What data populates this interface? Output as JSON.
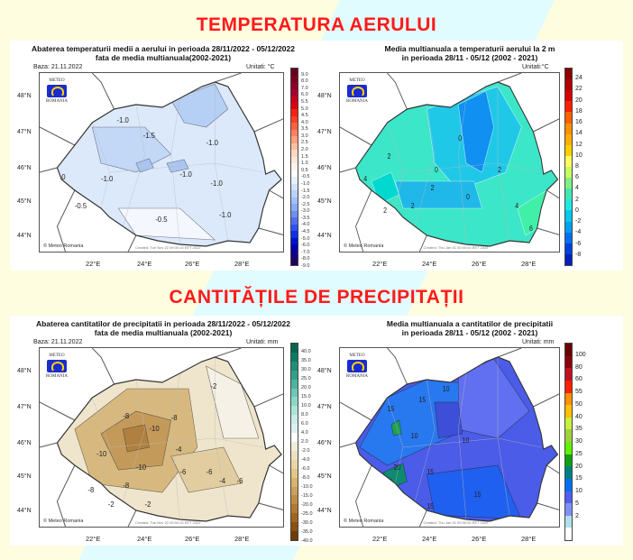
{
  "headings": {
    "temperature": "TEMPERATURA AERULUI",
    "precipitation": "CANTITĂȚILE DE PRECIPITAȚII"
  },
  "common": {
    "logo_top": "METEO",
    "logo_bottom": "ROMANIA",
    "copyright": "© Meteo Romania",
    "lat": [
      "48°N",
      "47°N",
      "46°N",
      "45°N",
      "44°N"
    ],
    "lon": [
      "22°E",
      "24°E",
      "26°E",
      "28°E"
    ]
  },
  "maps": [
    {
      "title1": "Abaterea temperaturii medii a aerului in perioada 28/11/2022 - 05/12/2022",
      "title2": "fata de media multianuala(2002-2021)",
      "base": "Baza: 21.11.2022",
      "unit": "Unitati: °C",
      "created": "Created: Tue Nov 22 09:00:15 EET 2022",
      "colorbar": {
        "labels": [
          "9.0",
          "8.0",
          "7.0",
          "6.0",
          "5.5",
          "5.0",
          "4.5",
          "4.0",
          "3.5",
          "3.0",
          "2.5",
          "2.0",
          "1.5",
          "1.0",
          "0.5",
          "-0.5",
          "-1.0",
          "-1.5",
          "-2.0",
          "-2.5",
          "-3.0",
          "-3.5",
          "-4.0",
          "-4.5",
          "-5.0",
          "-6.0",
          "-7.0",
          "-8.0",
          "-9.0"
        ],
        "colors": [
          "#67001f",
          "#7a0022",
          "#8e0028",
          "#a8002e",
          "#c4001f",
          "#e00010",
          "#f82010",
          "#ff4020",
          "#ff6040",
          "#ff8060",
          "#ffa080",
          "#ffc0a0",
          "#ffd8c0",
          "#ffe8d8",
          "#fff4ec",
          "#ffffff",
          "#e6f0ff",
          "#d0e2ff",
          "#b8d2ff",
          "#a0c0ff",
          "#88aaf8",
          "#7090f0",
          "#5070f0",
          "#3050f0",
          "#1030e8",
          "#0010d0",
          "#0000b0",
          "#10008a",
          "#200060"
        ]
      },
      "contours": [
        "-1.0",
        "-1.5",
        "-1.0",
        "-1.0",
        "-1.0",
        "-1.0",
        "-0.5",
        "-0.5",
        "-1.0",
        "0"
      ]
    },
    {
      "title1": "Media multianuala a temperaturii aerului la 2 m",
      "title2": "in perioada 28/11 - 05/12 (2002 - 2021)",
      "unit": "Unitati:°C",
      "created": "Created: Thu Jan 01 00:00:00 EET 2022",
      "colorbar": {
        "labels": [
          "24",
          "22",
          "20",
          "18",
          "16",
          "14",
          "12",
          "10",
          "8",
          "6",
          "4",
          "2",
          "0",
          "-2",
          "-4",
          "-6",
          "-8"
        ],
        "colors": [
          "#8b0000",
          "#b00000",
          "#d80000",
          "#ff2000",
          "#ff6000",
          "#ff9000",
          "#ffb000",
          "#ffd000",
          "#ffff60",
          "#c8ff60",
          "#80f080",
          "#40e8b0",
          "#20e8e0",
          "#00c8f0",
          "#00a0f0",
          "#0070f0",
          "#0040e0",
          "#0020c0"
        ]
      },
      "contours": [
        "2",
        "0",
        "2",
        "0",
        "2",
        "0",
        "4",
        "2",
        "2",
        "4",
        "6"
      ]
    },
    {
      "title1": "Abaterea cantitatilor de precipitatii in perioada 28/11/2022 - 05/12/2022",
      "title2": "fata de media multianuala (2002-2021)",
      "base": "Baza: 21.11.2022",
      "unit": "Unitati: mm",
      "created": "Created: Tue Nov 22 09:00:15 EET 2022",
      "colorbar": {
        "labels": [
          "40.0",
          "35.0",
          "30.0",
          "25.0",
          "20.0",
          "15.0",
          "10.0",
          "8.0",
          "6.0",
          "4.0",
          "2.0",
          "-2.0",
          "-4.0",
          "-6.0",
          "-8.0",
          "-10.0",
          "-15.0",
          "-20.0",
          "-25.0",
          "-30.0",
          "-35.0",
          "-40.0"
        ],
        "colors": [
          "#00664f",
          "#0e7a62",
          "#1e8e75",
          "#33a08a",
          "#4cb4a0",
          "#6cc8b4",
          "#8cd8c6",
          "#aae4d8",
          "#c8ecea",
          "#dcf0f0",
          "#ffffff",
          "#f2eedc",
          "#ece2c0",
          "#e8d6a6",
          "#e2c68a",
          "#d8b470",
          "#cca05a",
          "#c08c46",
          "#b27832",
          "#a0641e",
          "#8c5012",
          "#6e3c08"
        ]
      },
      "contours": [
        "-2",
        "-8",
        "-8",
        "-10",
        "-4",
        "-10",
        "-8",
        "-6",
        "-10",
        "-6",
        "-4",
        "-6",
        "-2",
        "-8",
        "-2"
      ]
    },
    {
      "title1": "Media multianuala a cantitatilor de precipitatii",
      "title2": "in perioada 28/11 - 05/12 (2002 - 2021)",
      "unit": "Unitati: mm",
      "created": "Created: Thu Jan 01 00:00:00 EET 2022",
      "colorbar": {
        "labels": [
          "100",
          "80",
          "60",
          "55",
          "50",
          "40",
          "35",
          "30",
          "25",
          "20",
          "15",
          "10",
          "5",
          "2"
        ],
        "colors": [
          "#6b0000",
          "#8b0010",
          "#c01020",
          "#ff2000",
          "#ff9000",
          "#ffc000",
          "#c8f040",
          "#a0d040",
          "#60f000",
          "#10a010",
          "#008080",
          "#0070f0",
          "#5060f0",
          "#8090f8",
          "#b0e0ec",
          "#ffffff"
        ]
      },
      "contours": [
        "15",
        "10",
        "15",
        "10",
        "10",
        "15",
        "20",
        "15",
        "15"
      ]
    }
  ]
}
